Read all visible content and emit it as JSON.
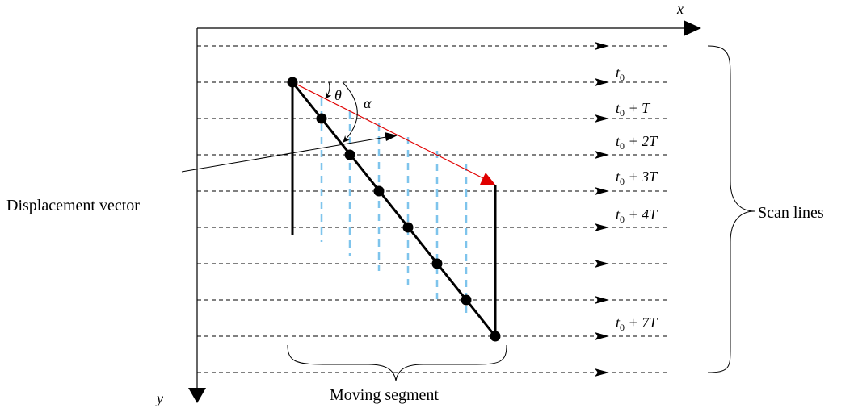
{
  "axes": {
    "x_label": "x",
    "y_label": "y"
  },
  "labels": {
    "displacement": "Displacement vector",
    "scan_lines": "Scan lines",
    "moving_segment": "Moving segment",
    "theta": "θ",
    "alpha": "α"
  },
  "time_labels": {
    "t0": "t",
    "t0_sub": "0",
    "t1_suffix": " + T",
    "t2_suffix": " + 2T",
    "t3_suffix": " + 3T",
    "t4_suffix": " + 4T",
    "t7_suffix": " + 7T"
  },
  "colors": {
    "vector": "#e00000",
    "dashes": "#7ec4ec",
    "lines": "#000000"
  }
}
